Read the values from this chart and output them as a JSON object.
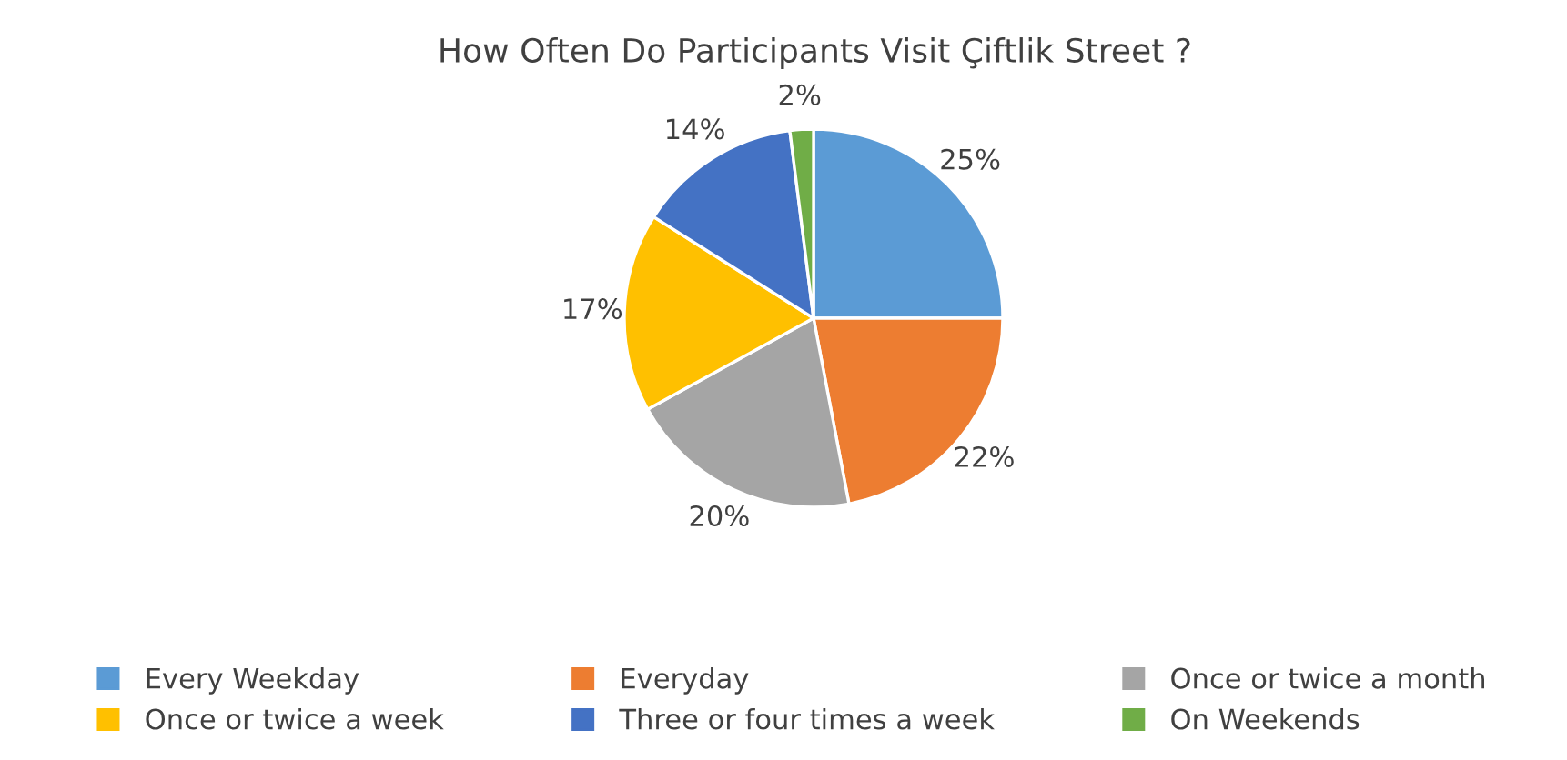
{
  "chart_data": {
    "type": "pie",
    "title": "How Often Do Participants Visit Çiftlik Street ?",
    "categories": [
      "Every Weekday",
      "Everyday",
      "Once or twice a month",
      "Once or twice a week",
      "Three or four times a week",
      "On Weekends"
    ],
    "values": [
      25,
      22,
      20,
      17,
      14,
      2
    ],
    "value_labels": [
      "25%",
      "22%",
      "20%",
      "17%",
      "14%",
      "2%"
    ],
    "colors": [
      "#5b9bd5",
      "#ed7d31",
      "#a5a5a5",
      "#ffc000",
      "#4472c4",
      "#70ad47"
    ],
    "legend": "bottom"
  }
}
